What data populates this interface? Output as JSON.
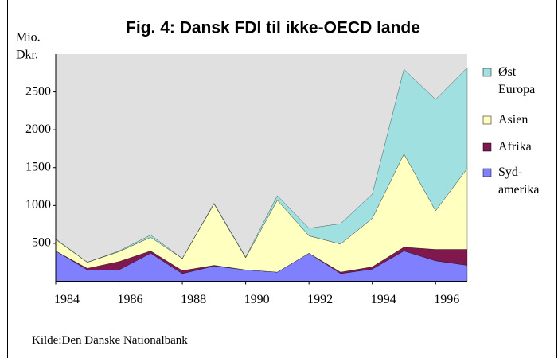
{
  "chart_data": {
    "type": "stacked_area",
    "title": "Fig. 4: Dansk FDI til ikke-OECD lande",
    "y_label_lines": [
      "Mio.",
      "Dkr."
    ],
    "source": "Kilde:Den Danske Nationalbank",
    "x": [
      1984,
      1985,
      1986,
      1987,
      1988,
      1989,
      1990,
      1991,
      1992,
      1993,
      1994,
      1995,
      1996,
      1997
    ],
    "xlim": [
      1984,
      1997
    ],
    "xticks": [
      1984,
      1986,
      1988,
      1990,
      1992,
      1994,
      1996
    ],
    "ylim": [
      0,
      3000
    ],
    "yticks": [
      500,
      1000,
      1500,
      2000,
      2500
    ],
    "plot_background": "#e0e0e0",
    "legend": "right",
    "series": [
      {
        "name": "Syd-amerika",
        "color": "#8080ff",
        "values": [
          400,
          150,
          150,
          370,
          100,
          200,
          150,
          120,
          370,
          100,
          160,
          400,
          270,
          210
        ]
      },
      {
        "name": "Afrika",
        "color": "#801850",
        "values": [
          0,
          20,
          110,
          30,
          40,
          10,
          0,
          0,
          0,
          20,
          30,
          50,
          150,
          210
        ]
      },
      {
        "name": "Asien",
        "color": "#ffffc0",
        "values": [
          150,
          80,
          130,
          180,
          160,
          810,
          160,
          950,
          230,
          370,
          640,
          1230,
          510,
          1070
        ]
      },
      {
        "name": "Øst Europa",
        "color": "#a0e0e0",
        "values": [
          10,
          0,
          10,
          30,
          0,
          10,
          10,
          60,
          100,
          270,
          320,
          1120,
          1470,
          1330
        ]
      }
    ]
  }
}
